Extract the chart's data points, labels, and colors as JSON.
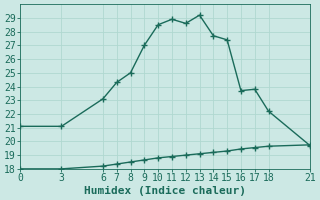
{
  "xlabel": "Humidex (Indice chaleur)",
  "background_color": "#cce8e4",
  "grid_color": "#b0d8d0",
  "line_color": "#1a6b5a",
  "xlim": [
    0,
    21
  ],
  "ylim": [
    18,
    30
  ],
  "xticks": [
    0,
    3,
    6,
    7,
    8,
    9,
    10,
    11,
    12,
    13,
    14,
    15,
    16,
    17,
    18,
    21
  ],
  "yticks": [
    18,
    19,
    20,
    21,
    22,
    23,
    24,
    25,
    26,
    27,
    28,
    29
  ],
  "series1_x": [
    0,
    3,
    6,
    7,
    8,
    9,
    10,
    11,
    12,
    13,
    14,
    15,
    16,
    17,
    18,
    21
  ],
  "series1_y": [
    21.1,
    21.1,
    23.1,
    24.3,
    25.0,
    27.0,
    28.5,
    28.9,
    28.6,
    29.2,
    27.7,
    27.4,
    23.7,
    23.8,
    22.2,
    19.7
  ],
  "series2_x": [
    0,
    3,
    6,
    7,
    8,
    9,
    10,
    11,
    12,
    13,
    14,
    15,
    16,
    17,
    18,
    21
  ],
  "series2_y": [
    18.0,
    18.0,
    18.2,
    18.35,
    18.5,
    18.65,
    18.8,
    18.9,
    19.0,
    19.1,
    19.2,
    19.3,
    19.45,
    19.55,
    19.65,
    19.75
  ],
  "marker_size": 4,
  "line_width": 1.0,
  "tick_fontsize": 7,
  "xlabel_fontsize": 8
}
